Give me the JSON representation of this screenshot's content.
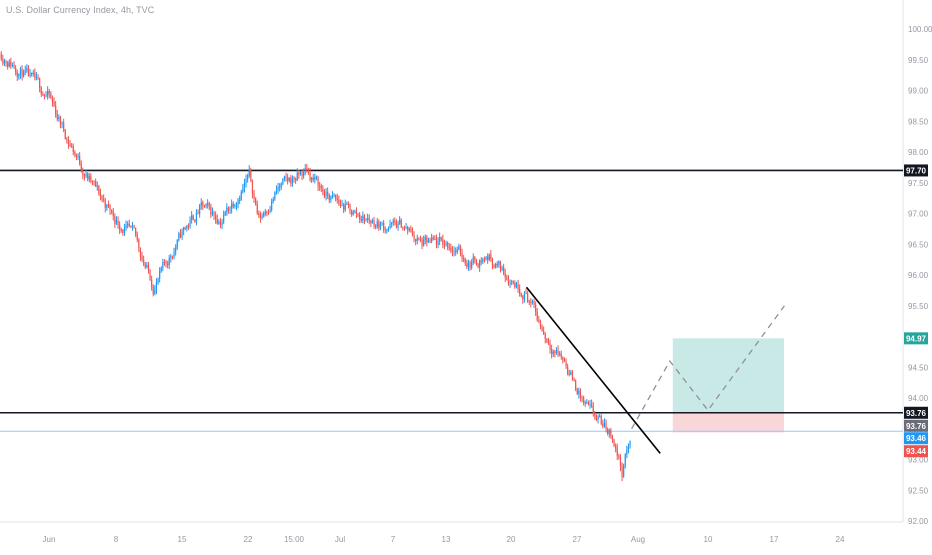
{
  "header": {
    "title": "U.S. Dollar Currency Index, 4h, TVC"
  },
  "colors": {
    "up": "#2196f3",
    "down": "#ef5350",
    "level_line": "#131722",
    "current_line": "#90caf9",
    "target_zone": "#b2dfdb",
    "stop_zone": "#f8cdd0",
    "target_badge": "#26a69a",
    "stop_badge": "#ef5350",
    "price_badge": "#2196f3",
    "dark_badge": "#131722",
    "grey_badge": "#6a6d78"
  },
  "chart_data": {
    "type": "candlestick",
    "title": "U.S. Dollar Currency Index, 4h, TVC",
    "ylim": [
      91.9,
      100.2
    ],
    "y_ticks": [
      "92.00",
      "92.50",
      "93.00",
      "93.50",
      "94.00",
      "94.50",
      "95.00",
      "95.50",
      "96.00",
      "96.50",
      "97.00",
      "97.50",
      "98.00",
      "98.50",
      "99.00",
      "99.50",
      "100.00"
    ],
    "x_ticks": [
      "Jun",
      "8",
      "15",
      "22",
      "15:00",
      "Jul",
      "7",
      "13",
      "20",
      "27",
      "Aug",
      "10",
      "17",
      "24"
    ],
    "horizontal_levels": [
      {
        "name": "resistance",
        "price": "97.70"
      },
      {
        "name": "support",
        "price": "93.76"
      }
    ],
    "current_price_line": "93.46",
    "position": {
      "entry": "93.76",
      "target": "94.97",
      "stop": "93.44"
    },
    "price_labels": [
      "97.70",
      "94.97",
      "93.76",
      "93.76",
      "93.46",
      "93.44"
    ],
    "trendline": {
      "from": [
        "Jul 21",
        95.8
      ],
      "to": [
        "Aug 4",
        93.1
      ]
    },
    "projection": [
      [
        "Aug 1",
        93.5
      ],
      [
        "Aug 5",
        94.6
      ],
      [
        "Aug 9",
        93.8
      ],
      [
        "Aug 17",
        95.5
      ]
    ],
    "anchors": [
      [
        "May 27",
        99.6
      ],
      [
        "Jun 1",
        98.9
      ],
      [
        "Jun 3",
        98.2
      ],
      [
        "Jun 5",
        97.6
      ],
      [
        "Jun 8",
        96.9
      ],
      [
        "Jun 10",
        96.6
      ],
      [
        "Jun 12",
        95.8
      ],
      [
        "Jun 15",
        96.7
      ],
      [
        "Jun 17",
        97.1
      ],
      [
        "Jun 19",
        96.9
      ],
      [
        "Jun 22",
        97.6
      ],
      [
        "Jun 23",
        96.9
      ],
      [
        "Jun 25",
        97.4
      ],
      [
        "Jun 28",
        97.7
      ],
      [
        "Jun 30",
        97.3
      ],
      [
        "Jul 3",
        97.0
      ],
      [
        "Jul 6",
        96.8
      ],
      [
        "Jul 8",
        96.8
      ],
      [
        "Jul 10",
        96.5
      ],
      [
        "Jul 13",
        96.5
      ],
      [
        "Jul 15",
        96.2
      ],
      [
        "Jul 17",
        96.3
      ],
      [
        "Jul 21",
        95.7
      ],
      [
        "Jul 23",
        95.0
      ],
      [
        "Jul 25",
        94.6
      ],
      [
        "Jul 27",
        93.9
      ],
      [
        "Jul 28",
        93.7
      ],
      [
        "Jul 30",
        93.4
      ],
      [
        "Jul 31",
        92.8
      ],
      [
        "Aug 1",
        93.4
      ]
    ]
  }
}
